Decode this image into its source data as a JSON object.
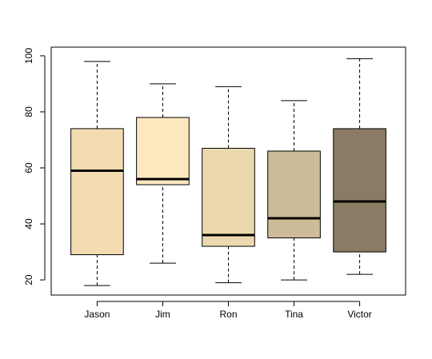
{
  "chart_data": {
    "type": "box",
    "categories": [
      "Jason",
      "Jim",
      "Ron",
      "Tina",
      "Victor"
    ],
    "boxes": [
      {
        "min": 18,
        "q1": 29,
        "median": 59,
        "q3": 74,
        "max": 98
      },
      {
        "min": 26,
        "q1": 54,
        "median": 56,
        "q3": 78,
        "max": 90
      },
      {
        "min": 19,
        "q1": 32,
        "median": 36,
        "q3": 67,
        "max": 89
      },
      {
        "min": 20,
        "q1": 35,
        "median": 42,
        "q3": 66,
        "max": 84
      },
      {
        "min": 22,
        "q1": 30,
        "median": 48,
        "q3": 74,
        "max": 99
      }
    ],
    "colors": [
      "#f3dcb2",
      "#fde8c0",
      "#ecd8ae",
      "#cdbb98",
      "#8b7b65"
    ],
    "ylim": [
      14.6,
      103.1
    ],
    "yticks": [
      20,
      40,
      60,
      80,
      100
    ]
  }
}
